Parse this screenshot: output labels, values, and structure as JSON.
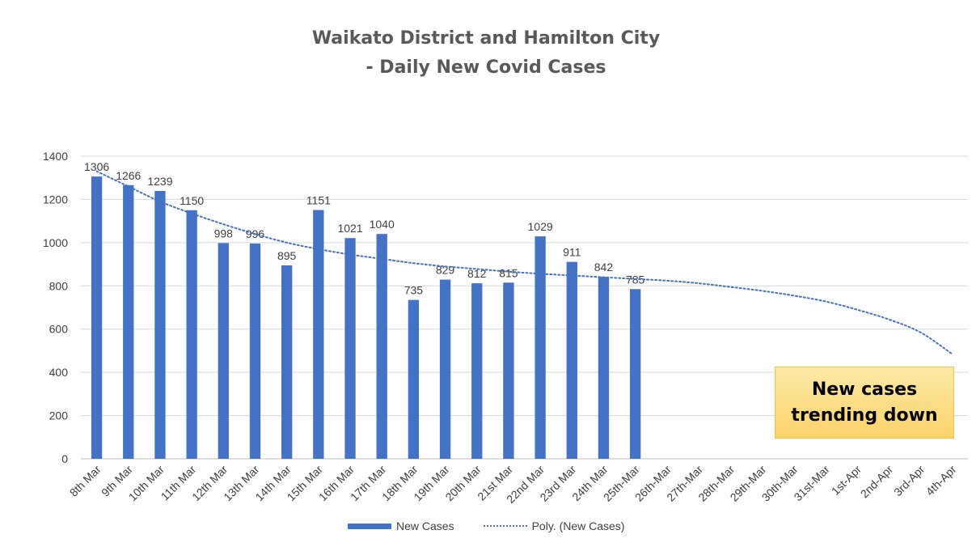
{
  "chart_data": {
    "type": "bar",
    "title": "Waikato District and Hamilton City",
    "subtitle": "- Daily New Covid Cases",
    "categories": [
      "8th Mar",
      "9th Mar",
      "10th Mar",
      "11th Mar",
      "12th Mar",
      "13th Mar",
      "14th Mar",
      "15th Mar",
      "16th Mar",
      "17th Mar",
      "18th Mar",
      "19th Mar",
      "20th Mar",
      "21st Mar",
      "22nd Mar",
      "23rd Mar",
      "24th Mar",
      "25th-Mar",
      "26th-Mar",
      "27th-Mar",
      "28th-Mar",
      "29th-Mar",
      "30th-Mar",
      "31st-Mar",
      "1st-Apr",
      "2nd-Apr",
      "3rd-Apr",
      "4th-Apr"
    ],
    "series": [
      {
        "name": "New Cases",
        "type": "bar",
        "color": "#4472c4",
        "values": [
          1306,
          1266,
          1239,
          1150,
          998,
          996,
          895,
          1151,
          1021,
          1040,
          735,
          829,
          812,
          815,
          1029,
          911,
          842,
          785,
          null,
          null,
          null,
          null,
          null,
          null,
          null,
          null,
          null,
          null
        ]
      },
      {
        "name": "Poly. (New Cases)",
        "type": "line",
        "style": "dotted",
        "color": "#4472c4",
        "values": [
          1330,
          1260,
          1190,
          1135,
          1085,
          1040,
          1000,
          970,
          945,
          925,
          905,
          890,
          878,
          866,
          856,
          848,
          840,
          832,
          824,
          812,
          795,
          777,
          755,
          728,
          690,
          645,
          585,
          485
        ]
      }
    ],
    "ylim": [
      0,
      1400
    ],
    "yticks": [
      0,
      200,
      400,
      600,
      800,
      1000,
      1200,
      1400
    ],
    "xlabel": "",
    "ylabel": "",
    "grid": true,
    "legend": "bottom"
  },
  "callout": {
    "line1": "New cases",
    "line2": "trending down"
  }
}
